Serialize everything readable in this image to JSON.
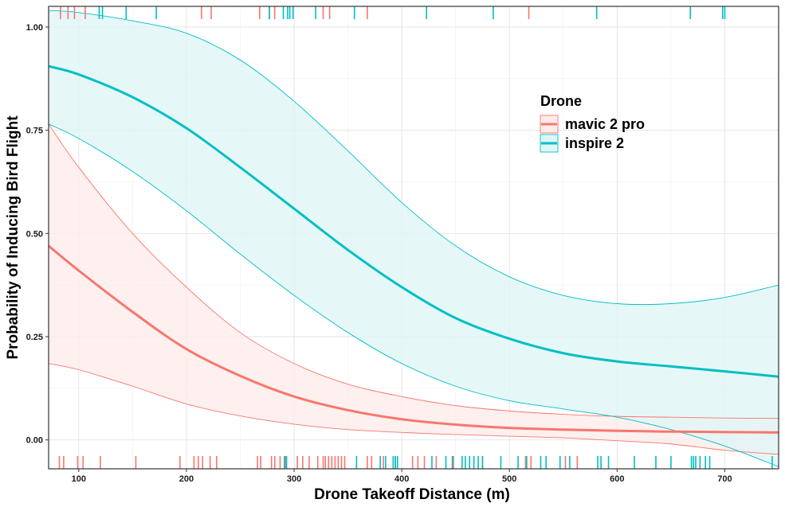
{
  "chart_data": {
    "type": "line",
    "title": "",
    "xlabel": "Drone Takeoff Distance (m)",
    "ylabel": "Probability of Inducing Bird Flight",
    "xlim": [
      72,
      750
    ],
    "ylim": [
      -0.07,
      1.05
    ],
    "x_ticks": [
      100,
      200,
      300,
      400,
      500,
      600,
      700
    ],
    "y_ticks": [
      0.0,
      0.25,
      0.5,
      0.75,
      1.0
    ],
    "y_tick_labels": [
      "0.00",
      "0.25",
      "0.50",
      "0.75",
      "1.00"
    ],
    "grid": true,
    "legend": {
      "title": "Drone",
      "position": "inside-top-right"
    },
    "x": [
      72,
      100,
      150,
      200,
      250,
      300,
      350,
      400,
      450,
      500,
      550,
      600,
      650,
      700,
      750
    ],
    "series": [
      {
        "name": "mavic 2 pro",
        "color": "#F8766D",
        "fill": "#FDECEA",
        "values": [
          0.47,
          0.41,
          0.31,
          0.22,
          0.155,
          0.105,
          0.072,
          0.05,
          0.037,
          0.029,
          0.025,
          0.022,
          0.02,
          0.019,
          0.018
        ],
        "lower": [
          0.185,
          0.17,
          0.13,
          0.087,
          0.058,
          0.038,
          0.025,
          0.018,
          0.013,
          0.009,
          0.005,
          -0.002,
          -0.01,
          -0.025,
          -0.035
        ],
        "upper": [
          0.765,
          0.66,
          0.5,
          0.37,
          0.26,
          0.185,
          0.135,
          0.105,
          0.083,
          0.07,
          0.062,
          0.057,
          0.055,
          0.053,
          0.052
        ],
        "rug_top": [
          83,
          90,
          96,
          106,
          214,
          223,
          268,
          277,
          282,
          327,
          333,
          368,
          518
        ],
        "rug_bottom": [
          82,
          86,
          99,
          104,
          120,
          153,
          194,
          207,
          211,
          215,
          222,
          228,
          266,
          269,
          279,
          282,
          287,
          292,
          303,
          308,
          314,
          322,
          327,
          329,
          332,
          335,
          338,
          341,
          344,
          347,
          368,
          372,
          383,
          394,
          410,
          415,
          421,
          432,
          448,
          475,
          515,
          520,
          552,
          563
        ]
      },
      {
        "name": "inspire 2",
        "color": "#00BFC4",
        "fill": "#E0F5F6",
        "values": [
          0.905,
          0.885,
          0.83,
          0.755,
          0.66,
          0.56,
          0.46,
          0.37,
          0.295,
          0.245,
          0.21,
          0.19,
          0.178,
          0.166,
          0.153
        ],
        "lower": [
          0.765,
          0.73,
          0.65,
          0.555,
          0.45,
          0.35,
          0.26,
          0.185,
          0.13,
          0.095,
          0.075,
          0.055,
          0.025,
          -0.015,
          -0.065
        ],
        "upper": [
          1.04,
          1.035,
          1.015,
          0.985,
          0.92,
          0.82,
          0.7,
          0.575,
          0.47,
          0.395,
          0.35,
          0.33,
          0.33,
          0.345,
          0.375
        ],
        "rug_top": [
          119,
          122,
          144,
          172,
          277,
          290,
          294,
          296,
          299,
          320,
          356,
          423,
          485,
          581,
          668,
          698,
          700
        ],
        "rug_bottom": [
          291,
          293,
          358,
          380,
          385,
          392,
          394,
          396,
          428,
          441,
          447,
          456,
          459,
          463,
          467,
          471,
          475,
          492,
          508,
          516,
          529,
          534,
          547,
          556,
          582,
          585,
          592,
          616,
          636,
          650,
          669,
          671,
          673,
          677,
          682,
          686,
          744
        ]
      }
    ]
  }
}
